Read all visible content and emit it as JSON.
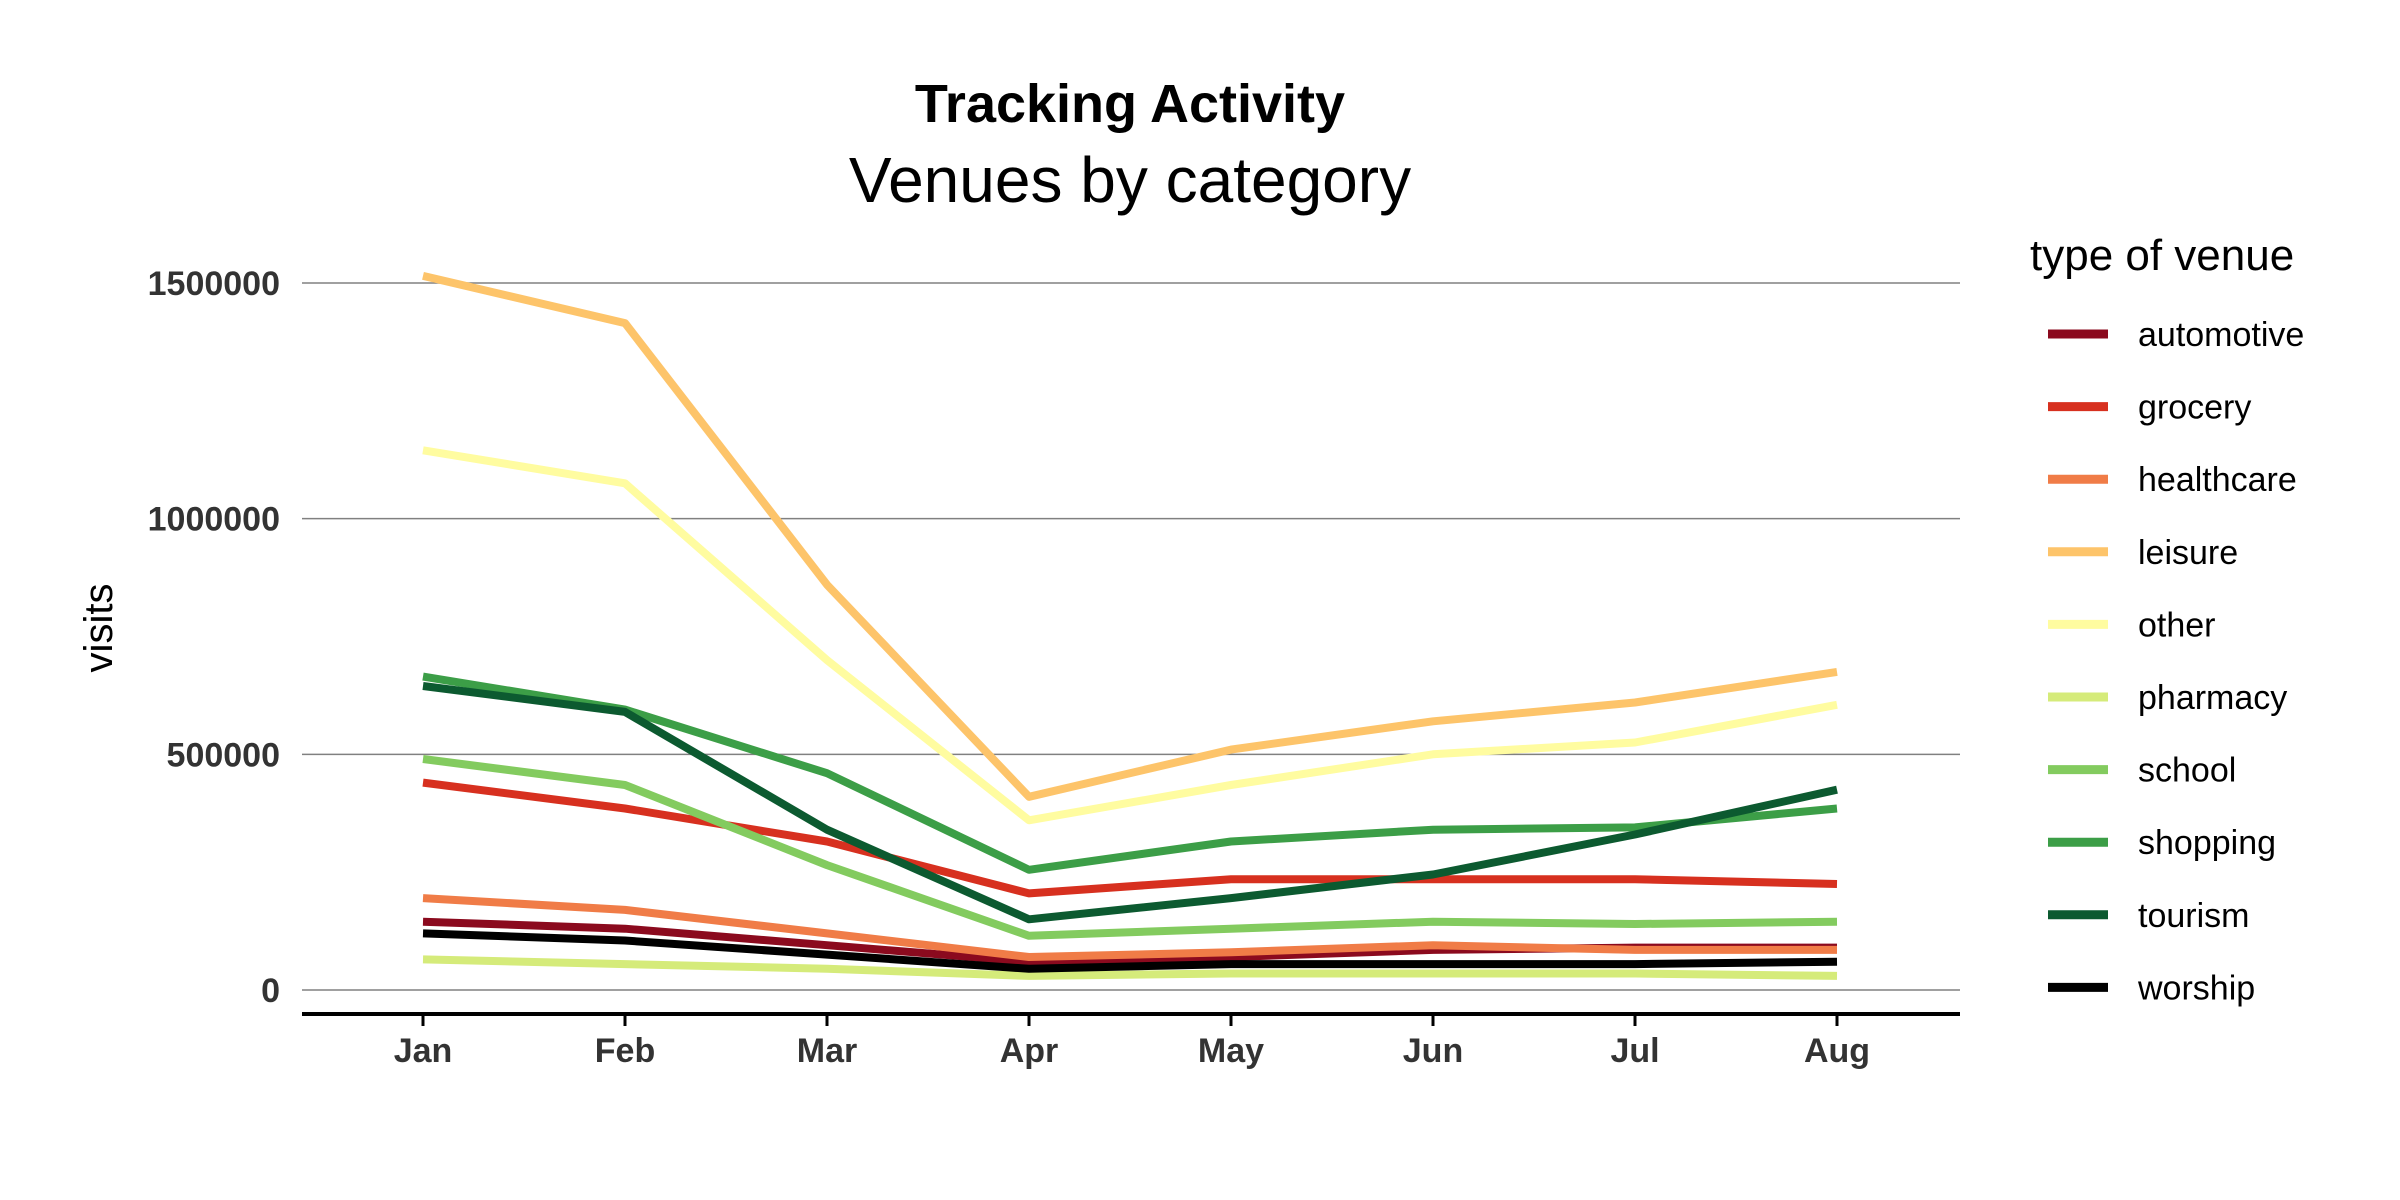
{
  "chart_data": {
    "type": "line",
    "title": "Tracking Activity",
    "subtitle": "Venues by category",
    "xlabel": "",
    "ylabel": "visits",
    "ylim": [
      -50000,
      1530000
    ],
    "yticks": [
      0,
      500000,
      1000000,
      1500000
    ],
    "ytick_labels": [
      "0",
      "500000",
      "1000000",
      "1500000"
    ],
    "categories": [
      "Jan",
      "Feb",
      "Mar",
      "Apr",
      "May",
      "Jun",
      "Jul",
      "Aug"
    ],
    "grid": "horizontal major",
    "legend": {
      "title": "type of venue",
      "placement": "right"
    },
    "series": [
      {
        "name": "automotive",
        "color": "#8B0A1E",
        "values": [
          145000,
          130000,
          95000,
          60000,
          70000,
          85000,
          90000,
          90000
        ]
      },
      {
        "name": "grocery",
        "color": "#D7301F",
        "values": [
          440000,
          385000,
          315000,
          205000,
          235000,
          235000,
          235000,
          225000
        ]
      },
      {
        "name": "healthcare",
        "color": "#F07C47",
        "values": [
          195000,
          170000,
          120000,
          70000,
          80000,
          95000,
          85000,
          85000
        ]
      },
      {
        "name": "leisure",
        "color": "#FDC46A",
        "values": [
          1515000,
          1415000,
          860000,
          410000,
          510000,
          570000,
          610000,
          675000
        ]
      },
      {
        "name": "other",
        "color": "#FFFCA0",
        "values": [
          1145000,
          1075000,
          700000,
          360000,
          435000,
          500000,
          525000,
          605000
        ]
      },
      {
        "name": "pharmacy",
        "color": "#D5EB7A",
        "values": [
          65000,
          55000,
          45000,
          30000,
          35000,
          35000,
          35000,
          30000
        ]
      },
      {
        "name": "school",
        "color": "#83CB5F",
        "values": [
          490000,
          435000,
          265000,
          115000,
          130000,
          145000,
          140000,
          145000
        ]
      },
      {
        "name": "shopping",
        "color": "#3C9E47",
        "values": [
          665000,
          595000,
          460000,
          255000,
          315000,
          340000,
          345000,
          385000
        ]
      },
      {
        "name": "tourism",
        "color": "#0C5A30",
        "values": [
          645000,
          590000,
          340000,
          150000,
          195000,
          245000,
          330000,
          425000
        ]
      },
      {
        "name": "worship",
        "color": "#000000",
        "values": [
          120000,
          105000,
          75000,
          45000,
          55000,
          55000,
          55000,
          60000
        ]
      }
    ]
  }
}
